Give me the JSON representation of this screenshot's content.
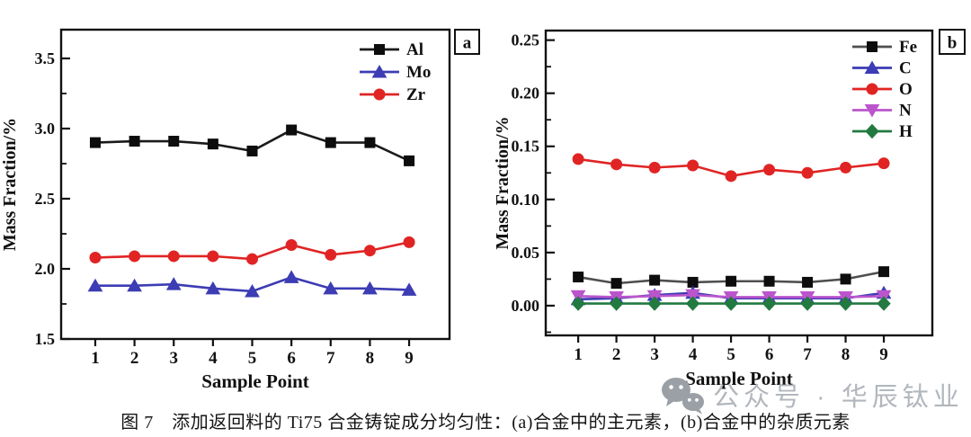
{
  "caption": {
    "text": "图 7　添加返回料的 Ti75 合金铸锭成分均匀性：(a)合金中的主元素，(b)合金中的杂质元素"
  },
  "watermark": {
    "icon": "wechat-icon",
    "text": "公众号 · 华辰钛业",
    "color": "#9aa0a6"
  },
  "chart_data": [
    {
      "id": "a",
      "type": "line",
      "panel_label": "a",
      "title": "",
      "xlabel": "Sample Point",
      "ylabel": "Mass Fraction/%",
      "x": [
        1,
        2,
        3,
        4,
        5,
        6,
        7,
        8,
        9
      ],
      "xticks": [
        1,
        2,
        3,
        4,
        5,
        6,
        7,
        8,
        9
      ],
      "xtick_labels": [
        "1",
        "2",
        "3",
        "4",
        "5",
        "6",
        "7",
        "8",
        "9"
      ],
      "xlim": [
        0.13,
        10.03
      ],
      "ylim": [
        1.5,
        3.705
      ],
      "yticks": [
        1.5,
        2.0,
        2.5,
        3.0,
        3.5
      ],
      "ytick_labels": [
        "1.5",
        "2.0",
        "2.5",
        "3.0",
        "3.5"
      ],
      "y_minor_step": 0.25,
      "grid": false,
      "legend_position": "top-right",
      "series": [
        {
          "name": "Al",
          "marker": "square",
          "color": "#0d0d0d",
          "line_color": "#1a1a1a",
          "values": [
            2.9,
            2.91,
            2.91,
            2.89,
            2.84,
            2.99,
            2.9,
            2.9,
            2.77
          ]
        },
        {
          "name": "Mo",
          "marker": "triangle-up",
          "color": "#3c3cb4",
          "line_color": "#3c3cb4",
          "values": [
            1.88,
            1.88,
            1.89,
            1.86,
            1.84,
            1.94,
            1.86,
            1.86,
            1.85
          ]
        },
        {
          "name": "Zr",
          "marker": "circle",
          "color": "#e02424",
          "line_color": "#e02424",
          "values": [
            2.08,
            2.09,
            2.09,
            2.09,
            2.07,
            2.17,
            2.1,
            2.13,
            2.19
          ]
        }
      ]
    },
    {
      "id": "b",
      "type": "line",
      "panel_label": "b",
      "title": "",
      "xlabel": "Sample Point",
      "ylabel": "Mass Fraction/%",
      "x": [
        1,
        2,
        3,
        4,
        5,
        6,
        7,
        8,
        9
      ],
      "xticks": [
        1,
        2,
        3,
        4,
        5,
        6,
        7,
        8,
        9
      ],
      "xtick_labels": [
        "1",
        "2",
        "3",
        "4",
        "5",
        "6",
        "7",
        "8",
        "9"
      ],
      "xlim": [
        0.15,
        10.27
      ],
      "ylim": [
        -0.028,
        0.259
      ],
      "yticks": [
        0.0,
        0.05,
        0.1,
        0.15,
        0.2,
        0.25
      ],
      "ytick_labels": [
        "0.00",
        "0.05",
        "0.10",
        "0.15",
        "0.20",
        "0.25"
      ],
      "y_minor_step": 0.025,
      "grid": false,
      "legend_position": "top-right",
      "series": [
        {
          "name": "Fe",
          "marker": "square",
          "color": "#0d0d0d",
          "line_color": "#4f4f4f",
          "values": [
            0.027,
            0.021,
            0.024,
            0.022,
            0.023,
            0.023,
            0.022,
            0.025,
            0.032
          ]
        },
        {
          "name": "C",
          "marker": "triangle-up",
          "color": "#3c3cb4",
          "line_color": "#3c3cb4",
          "values": [
            0.006,
            0.007,
            0.01,
            0.012,
            0.007,
            0.007,
            0.007,
            0.007,
            0.012
          ]
        },
        {
          "name": "O",
          "marker": "circle",
          "color": "#e02424",
          "line_color": "#e02424",
          "values": [
            0.138,
            0.133,
            0.13,
            0.132,
            0.122,
            0.128,
            0.125,
            0.13,
            0.134
          ]
        },
        {
          "name": "N",
          "marker": "triangle-down",
          "color": "#bb55cc",
          "line_color": "#bb55cc",
          "values": [
            0.009,
            0.008,
            0.009,
            0.01,
            0.008,
            0.008,
            0.008,
            0.008,
            0.009
          ]
        },
        {
          "name": "H",
          "marker": "diamond",
          "color": "#227a40",
          "line_color": "#227a40",
          "values": [
            0.002,
            0.002,
            0.002,
            0.002,
            0.002,
            0.002,
            0.002,
            0.002,
            0.002
          ]
        }
      ]
    }
  ]
}
